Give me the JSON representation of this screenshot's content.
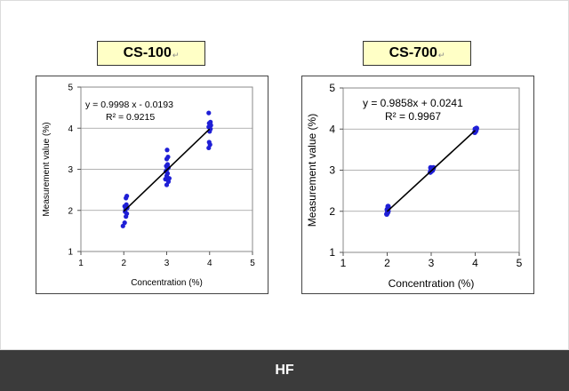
{
  "footer": {
    "label": "HF"
  },
  "chart_data": [
    {
      "type": "scatter",
      "title": "CS-100",
      "title_mark": "↵",
      "xlabel": "Concentration (%)",
      "ylabel": "Measurement value (%)",
      "xlim": [
        1,
        5
      ],
      "ylim": [
        1,
        5
      ],
      "x_ticks": [
        "1",
        "2",
        "3",
        "4",
        "5"
      ],
      "y_ticks": [
        "1",
        "2",
        "3",
        "4",
        "5"
      ],
      "grid": "horizontal",
      "point_color": "#1f1fd6",
      "line_color": "#000000",
      "equation": "y = 0.9998 x - 0.0193",
      "r_squared": "R² = 0.9215",
      "fit": {
        "slope": 0.9998,
        "intercept": -0.0193,
        "x_range": [
          2,
          4
        ]
      },
      "points": [
        [
          1.98,
          1.62
        ],
        [
          2.02,
          1.7
        ],
        [
          2.05,
          1.85
        ],
        [
          2.07,
          1.92
        ],
        [
          2.03,
          1.97
        ],
        [
          2.04,
          2.03
        ],
        [
          2.08,
          2.06
        ],
        [
          2.02,
          2.1
        ],
        [
          2.06,
          2.14
        ],
        [
          2.05,
          2.3
        ],
        [
          2.07,
          2.35
        ],
        [
          3.0,
          2.62
        ],
        [
          3.04,
          2.7
        ],
        [
          2.97,
          2.76
        ],
        [
          3.06,
          2.78
        ],
        [
          3.0,
          2.84
        ],
        [
          3.02,
          2.9
        ],
        [
          2.98,
          2.95
        ],
        [
          3.01,
          3.0
        ],
        [
          3.04,
          3.04
        ],
        [
          2.99,
          3.08
        ],
        [
          3.02,
          3.12
        ],
        [
          3.0,
          3.25
        ],
        [
          3.03,
          3.3
        ],
        [
          3.01,
          3.47
        ],
        [
          3.98,
          3.52
        ],
        [
          4.01,
          3.6
        ],
        [
          3.99,
          3.66
        ],
        [
          4.0,
          3.92
        ],
        [
          4.02,
          3.98
        ],
        [
          3.98,
          4.03
        ],
        [
          4.03,
          4.07
        ],
        [
          3.99,
          4.12
        ],
        [
          4.02,
          4.15
        ],
        [
          3.98,
          4.37
        ]
      ]
    },
    {
      "type": "scatter",
      "title": "CS-700",
      "title_mark": "↵",
      "xlabel": "Concentration (%)",
      "ylabel": "Measurement value (%)",
      "xlim": [
        1,
        5
      ],
      "ylim": [
        1,
        5
      ],
      "x_ticks": [
        "1",
        "2",
        "3",
        "4",
        "5"
      ],
      "y_ticks": [
        "1",
        "2",
        "3",
        "4",
        "5"
      ],
      "grid": "horizontal",
      "point_color": "#1f1fd6",
      "line_color": "#000000",
      "equation": "y = 0.9858x + 0.0241",
      "r_squared": "R² = 0.9967",
      "fit": {
        "slope": 0.9858,
        "intercept": 0.0241,
        "x_range": [
          2,
          4
        ]
      },
      "points": [
        [
          1.99,
          1.93
        ],
        [
          2.01,
          1.97
        ],
        [
          2.02,
          2.0
        ],
        [
          2.0,
          2.04
        ],
        [
          2.03,
          2.08
        ],
        [
          2.02,
          2.12
        ],
        [
          2.98,
          2.95
        ],
        [
          3.01,
          2.98
        ],
        [
          3.03,
          3.0
        ],
        [
          3.0,
          3.02
        ],
        [
          3.04,
          3.04
        ],
        [
          2.99,
          3.06
        ],
        [
          3.05,
          3.06
        ],
        [
          3.99,
          3.92
        ],
        [
          4.01,
          3.95
        ],
        [
          4.02,
          3.98
        ],
        [
          4.0,
          4.0
        ],
        [
          4.03,
          4.02
        ]
      ]
    }
  ]
}
